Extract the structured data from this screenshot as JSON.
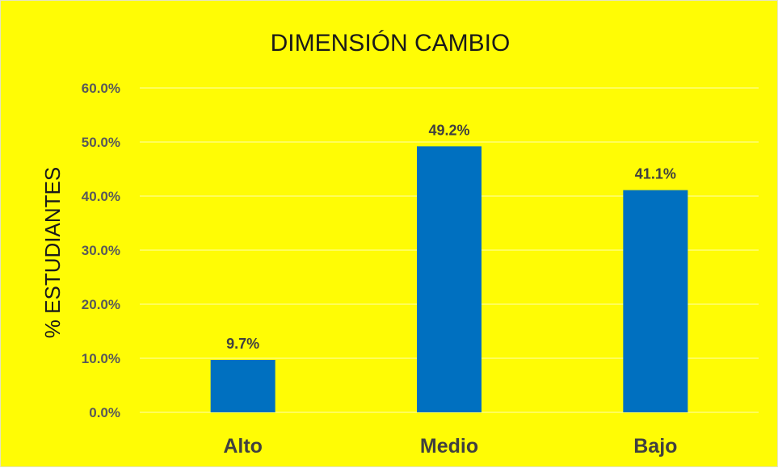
{
  "chart_data": {
    "type": "bar",
    "title": "DIMENSIÓN CAMBIO",
    "xlabel": "",
    "ylabel": "% ESTUDIANTES",
    "categories": [
      "Alto",
      "Medio",
      "Bajo"
    ],
    "values": [
      9.7,
      49.2,
      41.1
    ],
    "value_labels": [
      "9.7%",
      "49.2%",
      "41.1%"
    ],
    "ylim": [
      0,
      60
    ],
    "yticks": [
      0,
      10,
      20,
      30,
      40,
      50,
      60
    ],
    "ytick_labels": [
      "0.0%",
      "10.0%",
      "20.0%",
      "30.0%",
      "40.0%",
      "50.0%",
      "60.0%"
    ],
    "grid": true,
    "legend": "none",
    "colors": {
      "background": "#fffc05",
      "bar": "#0070c0",
      "text": "#404040"
    }
  }
}
